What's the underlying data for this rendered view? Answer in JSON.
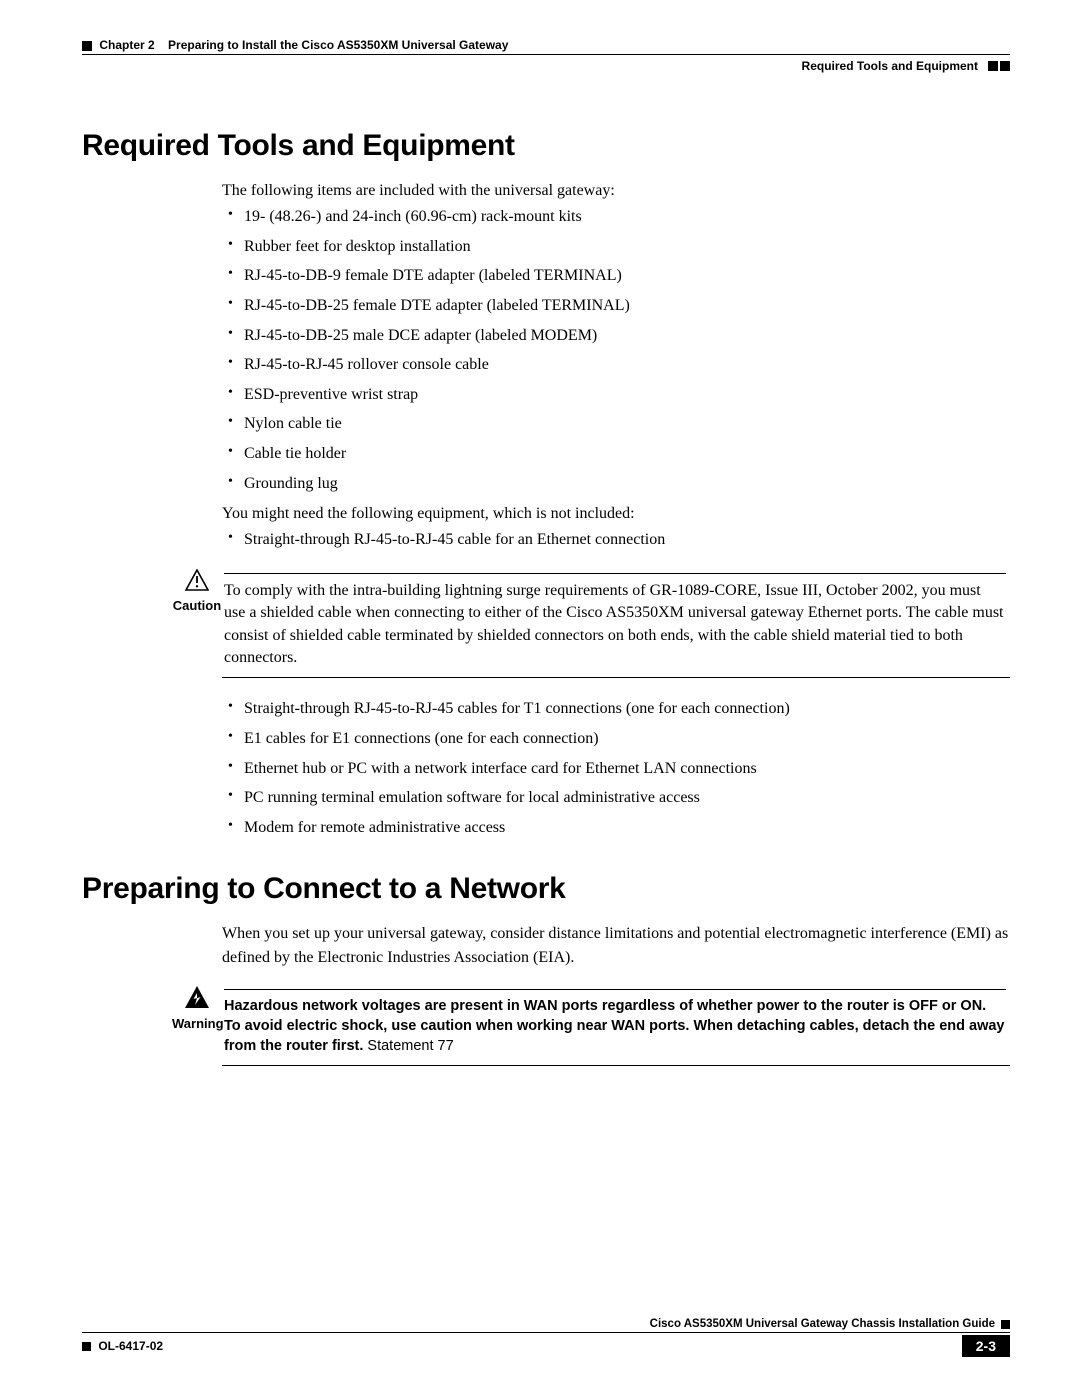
{
  "header": {
    "chapter_label": "Chapter 2",
    "chapter_title": "Preparing to Install the Cisco AS5350XM Universal Gateway",
    "section_right": "Required Tools and Equipment"
  },
  "section1": {
    "title": "Required Tools and Equipment",
    "intro": "The following items are included with the universal gateway:",
    "included_items": [
      "19- (48.26-) and 24-inch (60.96-cm) rack-mount kits",
      "Rubber feet for desktop installation",
      "RJ-45-to-DB-9 female DTE adapter (labeled TERMINAL)",
      "RJ-45-to-DB-25 female DTE adapter (labeled TERMINAL)",
      "RJ-45-to-DB-25 male DCE adapter (labeled MODEM)",
      "RJ-45-to-RJ-45 rollover console cable",
      "ESD-preventive wrist strap",
      "Nylon cable tie",
      "Cable tie holder",
      "Grounding lug"
    ],
    "not_included_intro": "You might need the following equipment, which is not included:",
    "not_included_pre": [
      "Straight-through RJ-45-to-RJ-45 cable for an Ethernet connection"
    ],
    "caution_label": "Caution",
    "caution_text": "To comply with the intra-building lightning surge requirements of GR-1089-CORE, Issue III, October 2002, you must use a shielded cable when connecting to either of the Cisco AS5350XM universal gateway Ethernet ports. The cable must consist of shielded cable terminated by shielded connectors on both ends, with the cable shield material tied to both connectors.",
    "not_included_post": [
      "Straight-through RJ-45-to-RJ-45 cables for T1 connections (one for each connection)",
      "E1 cables for E1 connections (one for each connection)",
      "Ethernet hub or PC with a network interface card for Ethernet LAN connections",
      "PC running terminal emulation software for local administrative access",
      "Modem for remote administrative access"
    ]
  },
  "section2": {
    "title": "Preparing to Connect to a Network",
    "intro": "When you set up your universal gateway, consider distance limitations and potential electromagnetic interference (EMI) as defined by the Electronic Industries Association (EIA).",
    "warning_label": "Warning",
    "warning_text": "Hazardous network voltages are present in WAN ports regardless of whether power to the router is OFF or ON. To avoid electric shock, use caution when working near WAN ports. When detaching cables, detach the end away from the router first.",
    "warning_stmt": " Statement 77"
  },
  "footer": {
    "guide_title": "Cisco AS5350XM Universal Gateway Chassis Installation Guide",
    "doc_id": "OL-6417-02",
    "page_num": "2-3"
  },
  "colors": {
    "text": "#000000",
    "bg": "#ffffff"
  }
}
